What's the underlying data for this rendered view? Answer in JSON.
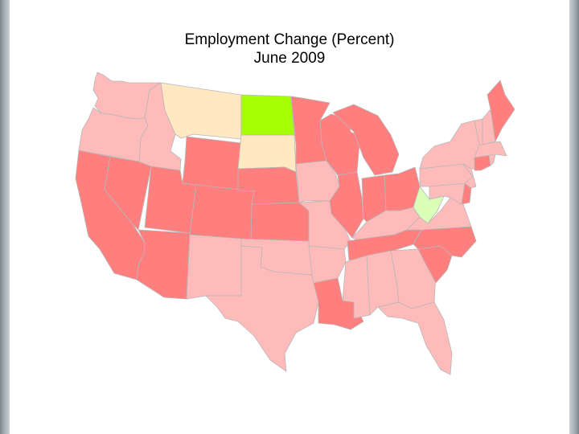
{
  "title": "Employment Change (Percent)",
  "subtitle": "June 2009",
  "colors": {
    "mild_decline": "#ffbaba",
    "strong_decline": "#ff7f7f",
    "slight_gain": "#ffe8c2",
    "gain": "#a6ff00",
    "small_gain": "#dbffb8",
    "state_border": "#b7b7b7"
  },
  "map_data": {
    "projection": "conic-albers-usa",
    "classification": {
      "Washington": "mild_decline",
      "Oregon": "mild_decline",
      "California": "strong_decline",
      "Nevada": "strong_decline",
      "Idaho": "mild_decline",
      "Montana": "slight_gain",
      "Wyoming": "strong_decline",
      "Utah": "strong_decline",
      "Arizona": "strong_decline",
      "Colorado": "strong_decline",
      "New Mexico": "mild_decline",
      "North Dakota": "gain",
      "South Dakota": "slight_gain",
      "Nebraska": "strong_decline",
      "Kansas": "strong_decline",
      "Oklahoma": "mild_decline",
      "Texas": "mild_decline",
      "Minnesota": "strong_decline",
      "Iowa": "mild_decline",
      "Missouri": "mild_decline",
      "Arkansas": "mild_decline",
      "Louisiana": "strong_decline",
      "Wisconsin": "strong_decline",
      "Michigan": "strong_decline",
      "Illinois": "strong_decline",
      "Indiana": "strong_decline",
      "Ohio": "strong_decline",
      "Kentucky": "mild_decline",
      "Tennessee": "strong_decline",
      "Mississippi": "mild_decline",
      "Alabama": "mild_decline",
      "Georgia": "mild_decline",
      "Florida": "mild_decline",
      "South Carolina": "strong_decline",
      "North Carolina": "strong_decline",
      "Virginia": "mild_decline",
      "West Virginia": "small_gain",
      "Maryland": "mild_decline",
      "Delaware": "strong_decline",
      "Pennsylvania": "mild_decline",
      "New Jersey": "mild_decline",
      "New York": "mild_decline",
      "Connecticut": "strong_decline",
      "Rhode Island": "mild_decline",
      "Massachusetts": "mild_decline",
      "Vermont": "mild_decline",
      "New Hampshire": "mild_decline",
      "Maine": "strong_decline"
    }
  }
}
